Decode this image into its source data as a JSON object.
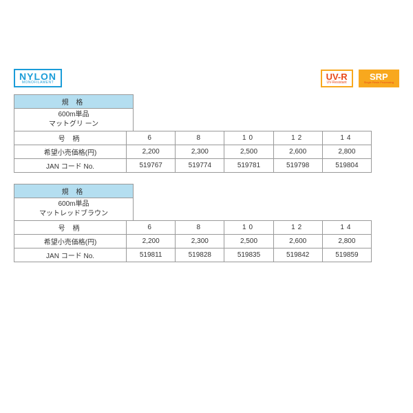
{
  "badges": {
    "nylon": {
      "line1": "NYLON",
      "line2": "MONOFILAMENT"
    },
    "uv": {
      "line1": "UV-R",
      "line2": "UV-Resistant"
    },
    "srp": {
      "line1": "SRP",
      "line2": "Single Resin Processing"
    }
  },
  "headers": {
    "spec": "規 格",
    "gauge": "号 柄",
    "price": "希望小売価格(円)",
    "jan": "JAN コード No."
  },
  "block1": {
    "spec_line1": "600m単品",
    "spec_line2": "マットグリ ーン",
    "gauges": [
      "6",
      "8",
      "10",
      "12",
      "14"
    ],
    "prices": [
      "2,200",
      "2,300",
      "2,500",
      "2,600",
      "2,800"
    ],
    "jans": [
      "519767",
      "519774",
      "519781",
      "519798",
      "519804"
    ]
  },
  "block2": {
    "spec_line1": "600m単品",
    "spec_line2": "マットレッドブラウン",
    "gauges": [
      "6",
      "8",
      "10",
      "12",
      "14"
    ],
    "prices": [
      "2,200",
      "2,300",
      "2,500",
      "2,600",
      "2,800"
    ],
    "jans": [
      "519811",
      "519828",
      "519835",
      "519842",
      "519859"
    ]
  }
}
